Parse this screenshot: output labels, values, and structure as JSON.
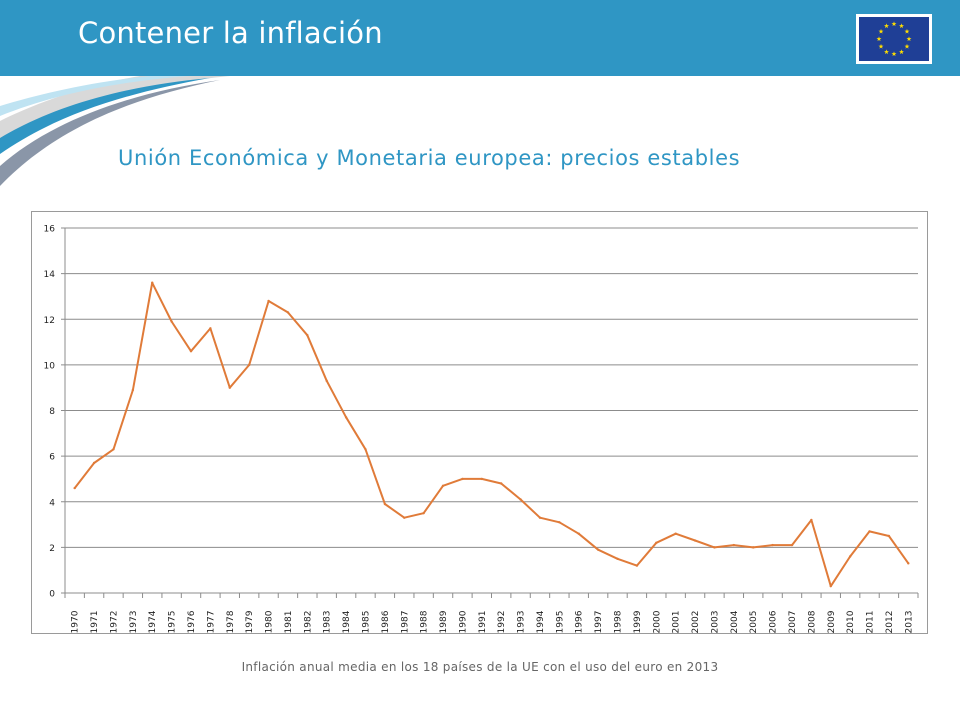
{
  "header": {
    "title": "Contener la inflación",
    "flag_icon": "eu-flag-icon",
    "colors": {
      "bar": "#2f96c4",
      "flag_blue": "#1f3f96",
      "flag_star": "#ffdd00"
    }
  },
  "subtitle": "Unión Económica y Monetaria europea: precios estables",
  "caption": "Inflación anual media en los 18 países de la UE con el uso del euro en 2013",
  "chart_data": {
    "type": "line",
    "title": "",
    "xlabel": "",
    "ylabel": "",
    "ylim": [
      0,
      16
    ],
    "yticks": [
      0,
      2,
      4,
      6,
      8,
      10,
      12,
      14,
      16
    ],
    "grid": "horizontal",
    "legend": "none",
    "line_color": "#e07b39",
    "categories": [
      "1970",
      "1971",
      "1972",
      "1973",
      "1974",
      "1975",
      "1976",
      "1977",
      "1978",
      "1979",
      "1980",
      "1981",
      "1982",
      "1983",
      "1984",
      "1985",
      "1986",
      "1987",
      "1988",
      "1989",
      "1990",
      "1991",
      "1992",
      "1993",
      "1994",
      "1995",
      "1996",
      "1997",
      "1998",
      "1999",
      "2000",
      "2001",
      "2002",
      "2003",
      "2004",
      "2005",
      "2006",
      "2007",
      "2008",
      "2009",
      "2010",
      "2011",
      "2012",
      "2013"
    ],
    "series": [
      {
        "values": [
          4.6,
          5.7,
          6.3,
          8.9,
          13.6,
          11.9,
          10.6,
          11.6,
          9.0,
          10.0,
          12.8,
          12.3,
          11.3,
          9.3,
          7.7,
          6.3,
          3.9,
          3.3,
          3.5,
          4.7,
          5.0,
          5.0,
          4.8,
          4.1,
          3.3,
          3.1,
          2.6,
          1.9,
          1.5,
          1.2,
          2.2,
          2.6,
          2.3,
          2.0,
          2.1,
          2.0,
          2.1,
          2.1,
          3.2,
          0.3,
          1.6,
          2.7,
          2.5,
          1.3
        ]
      }
    ]
  }
}
